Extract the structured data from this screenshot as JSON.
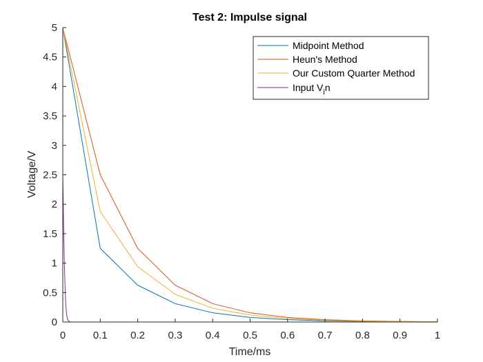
{
  "chart_data": {
    "type": "line",
    "title": "Test 2: Impulse signal",
    "xlabel": "Time/ms",
    "ylabel": "Voltage/V",
    "xlim": [
      0,
      1
    ],
    "ylim": [
      0,
      5
    ],
    "xticks": [
      "0",
      "0.1",
      "0.2",
      "0.3",
      "0.4",
      "0.5",
      "0.6",
      "0.7",
      "0.8",
      "0.9",
      "1"
    ],
    "yticks": [
      "0",
      "0.5",
      "1",
      "1.5",
      "2",
      "2.5",
      "3",
      "3.5",
      "4",
      "4.5",
      "5"
    ],
    "grid": false,
    "legend_position": "top-right",
    "series": [
      {
        "name": "Midpoint Method",
        "color": "#0072BD",
        "x": [
          0,
          0.1,
          0.2,
          0.3,
          0.4,
          0.5,
          0.6,
          0.7,
          0.8,
          0.9,
          1.0
        ],
        "y": [
          5,
          1.25,
          0.625,
          0.3125,
          0.156,
          0.078,
          0.039,
          0.02,
          0.01,
          0.005,
          0.002
        ]
      },
      {
        "name": "Heun's Method",
        "color": "#D95319",
        "x": [
          0,
          0.1,
          0.2,
          0.3,
          0.4,
          0.5,
          0.6,
          0.7,
          0.8,
          0.9,
          1.0
        ],
        "y": [
          5,
          2.5,
          1.25,
          0.625,
          0.3125,
          0.156,
          0.078,
          0.039,
          0.02,
          0.01,
          0.005
        ]
      },
      {
        "name": "Our Custom Quarter Method",
        "color": "#EDB120",
        "x": [
          0,
          0.1,
          0.2,
          0.3,
          0.4,
          0.5,
          0.6,
          0.7,
          0.8,
          0.9,
          1.0
        ],
        "y": [
          5,
          1.875,
          0.94,
          0.47,
          0.235,
          0.117,
          0.059,
          0.029,
          0.015,
          0.007,
          0.004
        ]
      },
      {
        "name": "Input V_in",
        "color": "#7E2F8E",
        "x": [
          0,
          0.002,
          0.004,
          0.006,
          0.008,
          0.01,
          0.012,
          0.015,
          0.02,
          0.03,
          0.05,
          1.0
        ],
        "y": [
          2.5,
          1.7,
          1.05,
          0.6,
          0.3,
          0.14,
          0.06,
          0.02,
          0.0,
          0.0,
          0.0,
          0.0
        ]
      }
    ],
    "legend": {
      "entries": [
        {
          "text": "Midpoint Method",
          "color": "#0072BD"
        },
        {
          "text": "Heun's Method",
          "color": "#D95319"
        },
        {
          "text": "Our Custom Quarter Method",
          "color": "#EDB120"
        },
        {
          "text_main": "Input V",
          "text_sub": "i",
          "text_tail": "n",
          "color": "#7E2F8E"
        }
      ]
    }
  }
}
